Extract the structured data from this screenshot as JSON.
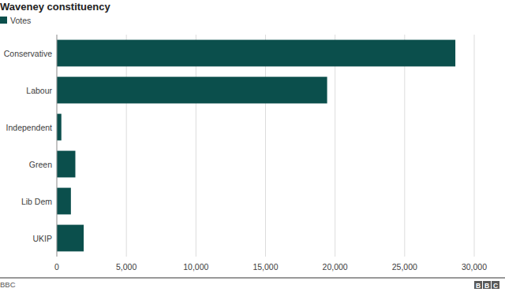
{
  "chart_data": {
    "type": "bar",
    "orientation": "horizontal",
    "title": "Waveney constituency",
    "categories": [
      "Conservative",
      "Labour",
      "Independent",
      "Green",
      "Lib Dem",
      "UKIP"
    ],
    "series": [
      {
        "name": "Votes",
        "color": "#0b4f4c",
        "values": [
          28643,
          19428,
          326,
          1332,
          1012,
          1933
        ]
      }
    ],
    "xlim": [
      0,
      30000
    ],
    "xticks": [
      0,
      {
        "value": 5000,
        "label": "5,000"
      },
      {
        "value": 10000,
        "label": "10,000"
      },
      {
        "value": 15000,
        "label": "15,000"
      },
      {
        "value": 20000,
        "label": "20,000"
      },
      {
        "value": 25000,
        "label": "25,000"
      },
      {
        "value": 30000,
        "label": "30,000"
      }
    ],
    "grid": true,
    "legend": "top-left",
    "source": "BBC",
    "logo": "BBC"
  }
}
